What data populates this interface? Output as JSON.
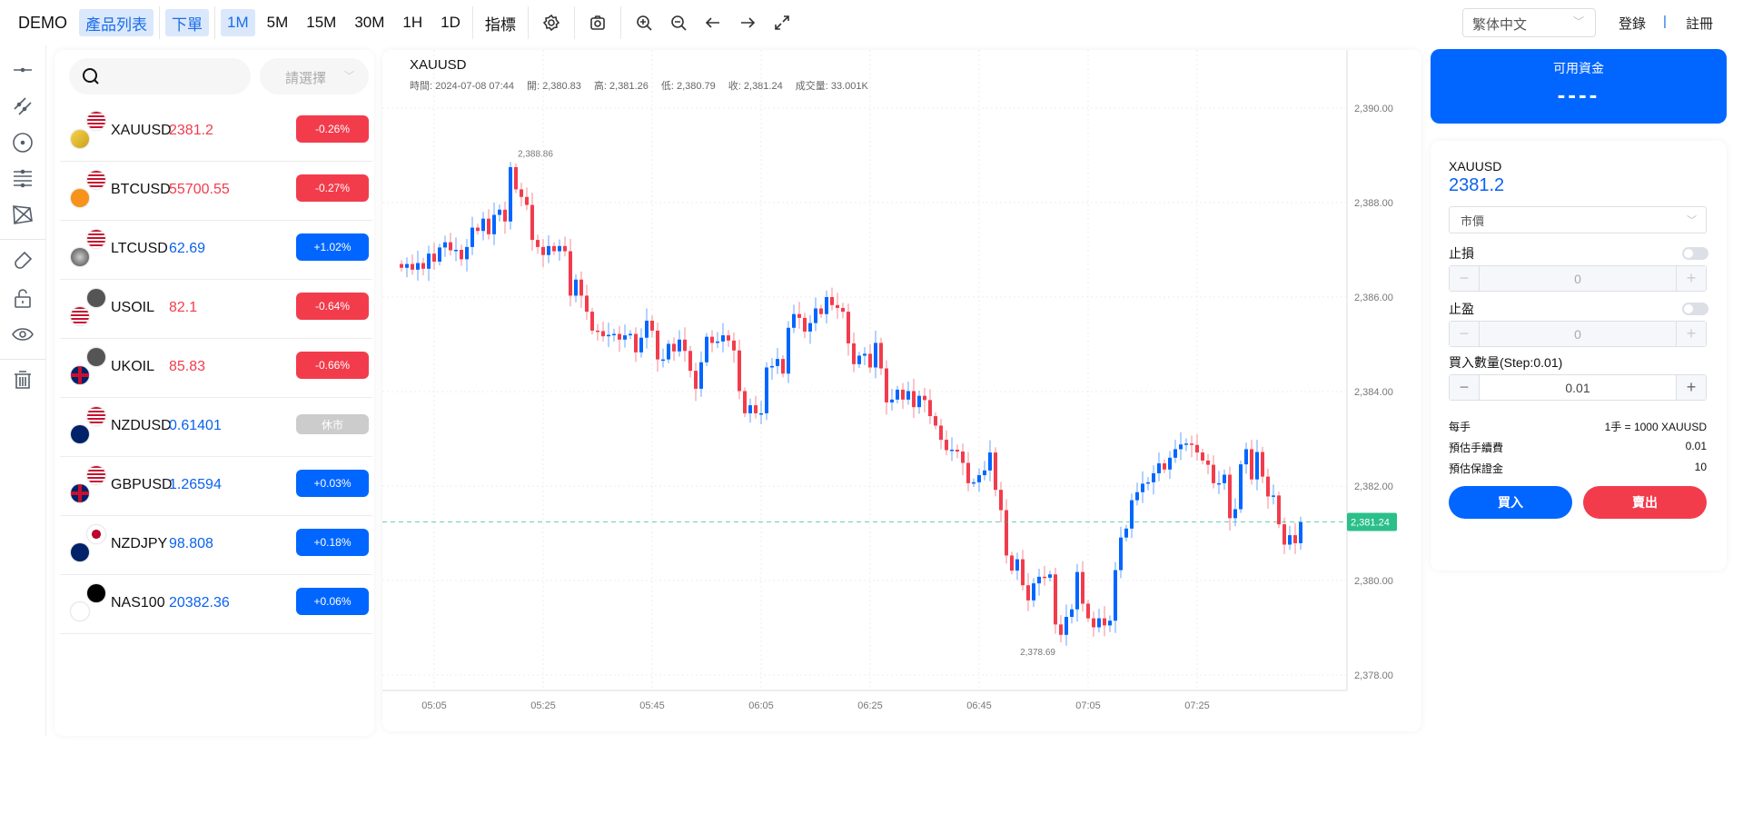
{
  "topbar": {
    "brand": "DEMO",
    "nav": [
      {
        "label": "產品列表",
        "active": true
      },
      {
        "label": "下單",
        "active": true
      }
    ],
    "intervals": [
      {
        "label": "1M",
        "active": true
      },
      {
        "label": "5M"
      },
      {
        "label": "15M"
      },
      {
        "label": "30M"
      },
      {
        "label": "1H"
      },
      {
        "label": "1D"
      }
    ],
    "indicators": "指標",
    "language": "繁体中文",
    "login": "登錄",
    "divider": "|",
    "register": "註冊"
  },
  "left_tools": [
    "horizontal-line",
    "parallel-lines",
    "circle",
    "fib-lines",
    "polygon",
    "magnet",
    "unlock",
    "eye",
    "trash"
  ],
  "products": {
    "search_placeholder": "",
    "filter_placeholder": "請選擇",
    "items": [
      {
        "symbol": "XAUUSD",
        "price": "2381.2",
        "dir": "dn",
        "change": "-0.26%",
        "flags": [
          "us",
          "gold"
        ]
      },
      {
        "symbol": "BTCUSD",
        "price": "55700.55",
        "dir": "dn",
        "change": "-0.27%",
        "flags": [
          "us",
          "btc"
        ]
      },
      {
        "symbol": "LTCUSD",
        "price": "62.69",
        "dir": "up",
        "change": "+1.02%",
        "flags": [
          "us",
          "ltc"
        ]
      },
      {
        "symbol": "USOIL",
        "price": "82.1",
        "dir": "dn",
        "change": "-0.64%",
        "flags": [
          "oil",
          "us"
        ]
      },
      {
        "symbol": "UKOIL",
        "price": "85.83",
        "dir": "dn",
        "change": "-0.66%",
        "flags": [
          "oil",
          "uk"
        ]
      },
      {
        "symbol": "NZDUSD",
        "price": "0.61401",
        "dir": "up",
        "change": "休市",
        "closed": true,
        "flags": [
          "us",
          "nz"
        ]
      },
      {
        "symbol": "GBPUSD",
        "price": "1.26594",
        "dir": "up",
        "change": "+0.03%",
        "flags": [
          "us",
          "uk"
        ]
      },
      {
        "symbol": "NZDJPY",
        "price": "98.808",
        "dir": "up",
        "change": "+0.18%",
        "flags": [
          "jp",
          "nz"
        ]
      },
      {
        "symbol": "NAS100",
        "price": "20382.36",
        "dir": "up",
        "change": "+0.06%",
        "flags": [
          "nas",
          "nasdaq"
        ]
      }
    ]
  },
  "chart_header": {
    "symbol": "XAUUSD",
    "time": "時間: 2024-07-08 07:44",
    "open": "開: 2,380.83",
    "high": "高: 2,381.26",
    "low": "低: 2,380.79",
    "close": "收: 2,381.24",
    "volume": "成交量: 33.001K"
  },
  "chart_data": {
    "type": "candlestick",
    "title": "XAUUSD",
    "interval": "1M",
    "start_time": "04:59",
    "first_open": 2386.7,
    "closes": [
      2386.62,
      2386.7,
      2386.58,
      2386.72,
      2386.6,
      2386.92,
      2386.75,
      2387.05,
      2387.16,
      2386.99,
      2387.0,
      2386.8,
      2387.06,
      2387.47,
      2387.4,
      2387.66,
      2387.33,
      2387.74,
      2387.85,
      2387.6,
      2388.75,
      2388.28,
      2388.12,
      2387.95,
      2387.21,
      2387.06,
      2386.89,
      2387.08,
      2386.97,
      2387.08,
      2386.97,
      2386.03,
      2386.37,
      2386.03,
      2385.69,
      2385.29,
      2385.28,
      2385.17,
      2385.2,
      2385.22,
      2385.1,
      2385.19,
      2385.22,
      2384.83,
      2385.14,
      2385.5,
      2385.29,
      2384.68,
      2384.68,
      2385.01,
      2384.85,
      2385.1,
      2384.86,
      2384.44,
      2384.06,
      2384.62,
      2385.16,
      2385.03,
      2385.06,
      2385.19,
      2385.08,
      2384.87,
      2384.01,
      2383.54,
      2383.71,
      2383.54,
      2383.54,
      2384.51,
      2384.54,
      2384.69,
      2384.38,
      2385.35,
      2385.64,
      2385.56,
      2385.27,
      2385.45,
      2385.76,
      2385.64,
      2386.0,
      2385.83,
      2385.77,
      2385.69,
      2385.02,
      2384.58,
      2384.76,
      2384.8,
      2384.51,
      2385.03,
      2384.49,
      2383.77,
      2383.83,
      2384.04,
      2383.83,
      2384.01,
      2383.67,
      2383.91,
      2383.82,
      2383.48,
      2383.28,
      2382.98,
      2382.76,
      2382.77,
      2382.73,
      2382.49,
      2382.06,
      2382.08,
      2382.23,
      2382.33,
      2382.71,
      2381.92,
      2381.49,
      2380.53,
      2380.21,
      2380.45,
      2379.9,
      2379.58,
      2379.94,
      2380.08,
      2380.06,
      2380.13,
      2379.07,
      2378.85,
      2379.23,
      2379.39,
      2380.18,
      2379.51,
      2379.2,
      2379.01,
      2379.2,
      2379.05,
      2379.15,
      2380.22,
      2380.91,
      2381.1,
      2381.7,
      2381.87,
      2382.05,
      2382.08,
      2382.27,
      2382.48,
      2382.35,
      2382.6,
      2382.78,
      2382.88,
      2382.9,
      2382.87,
      2382.71,
      2382.54,
      2382.45,
      2382.06,
      2382.06,
      2382.24,
      2381.32,
      2381.51,
      2382.46,
      2382.78,
      2382.14,
      2382.72,
      2382.2,
      2381.78,
      2381.8,
      2381.19,
      2380.76,
      2380.96,
      2380.79,
      2381.24
    ],
    "ylim": [
      2377.6,
      2391.2
    ],
    "y_ticks": [
      "2,378.00",
      "2,380.00",
      "2,382.00",
      "2,384.00",
      "2,386.00",
      "2,388.00",
      "2,390.00"
    ],
    "y_tick_values": [
      2378,
      2380,
      2382,
      2384,
      2386,
      2388,
      2390
    ],
    "x_ticks": [
      "05:05",
      "05:25",
      "05:45",
      "06:05",
      "06:25",
      "06:45",
      "07:05",
      "07:25"
    ],
    "x_tick_index": [
      6,
      26,
      46,
      66,
      86,
      106,
      126,
      146
    ],
    "max_marker": {
      "label": "2,388.86",
      "value": 2388.86,
      "index": 20
    },
    "min_marker": {
      "label": "2,378.69",
      "value": 2378.69,
      "index": 121
    },
    "last_price": {
      "label": "2,381.24",
      "value": 2381.24
    },
    "colors": {
      "up": "#0066ff",
      "down": "#f23c4c",
      "last": "#2bbf8a"
    }
  },
  "funds": {
    "title": "可用資金",
    "value": "----"
  },
  "order": {
    "symbol": "XAUUSD",
    "price": "2381.2",
    "type": "市價",
    "stop_loss": {
      "label": "止損",
      "value": "0",
      "enabled": false
    },
    "take_profit": {
      "label": "止盈",
      "value": "0",
      "enabled": false
    },
    "qty": {
      "label": "買入數量(Step:0.01)",
      "value": "0.01"
    },
    "minus": "−",
    "plus": "+",
    "info": [
      {
        "k": "每手",
        "v": "1手 = 1000 XAUUSD"
      },
      {
        "k": "預估手續費",
        "v": "0.01"
      },
      {
        "k": "預估保證金",
        "v": "10"
      }
    ],
    "buy": "買入",
    "sell": "賣出"
  }
}
